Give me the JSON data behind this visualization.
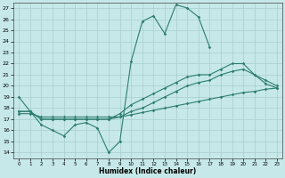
{
  "xlabel": "Humidex (Indice chaleur)",
  "ylabel": "",
  "bg_color": "#c6e8e8",
  "line_color": "#2d7d6e",
  "grid_color": "#a8cece",
  "xlim": [
    -0.5,
    23.5
  ],
  "ylim": [
    13.5,
    27.5
  ],
  "xticks": [
    0,
    1,
    2,
    3,
    4,
    5,
    6,
    7,
    8,
    9,
    10,
    11,
    12,
    13,
    14,
    15,
    16,
    17,
    18,
    19,
    20,
    21,
    22,
    23
  ],
  "yticks": [
    14,
    15,
    16,
    17,
    18,
    19,
    20,
    21,
    22,
    23,
    24,
    25,
    26,
    27
  ],
  "series": [
    {
      "x": [
        0,
        1,
        2,
        3,
        4,
        5,
        6,
        7,
        8,
        9,
        10,
        11,
        12,
        13,
        14,
        15,
        16,
        17
      ],
      "y": [
        19.0,
        17.7,
        16.5,
        16.0,
        15.5,
        16.5,
        16.7,
        16.2,
        14.0,
        15.0,
        22.2,
        25.8,
        26.3,
        24.7,
        27.3,
        27.0,
        26.2,
        23.5
      ]
    },
    {
      "x": [
        0,
        1,
        2,
        3,
        4,
        5,
        6,
        7,
        8,
        9,
        10,
        11,
        12,
        13,
        14,
        15,
        16,
        17,
        18,
        19,
        20,
        21,
        22,
        23
      ],
      "y": [
        17.7,
        17.7,
        17.0,
        17.0,
        17.0,
        17.0,
        17.0,
        17.0,
        17.0,
        17.5,
        18.3,
        18.8,
        19.3,
        19.8,
        20.3,
        20.8,
        21.0,
        21.0,
        21.5,
        22.0,
        22.0,
        21.0,
        20.5,
        20.0
      ]
    },
    {
      "x": [
        0,
        1,
        2,
        3,
        4,
        5,
        6,
        7,
        8,
        9,
        10,
        11,
        12,
        13,
        14,
        15,
        16,
        17,
        18,
        19,
        20,
        21,
        22,
        23
      ],
      "y": [
        17.7,
        17.7,
        17.0,
        17.0,
        17.0,
        17.0,
        17.0,
        17.0,
        17.0,
        17.2,
        17.7,
        18.0,
        18.5,
        19.0,
        19.5,
        20.0,
        20.3,
        20.5,
        21.0,
        21.3,
        21.5,
        21.0,
        20.2,
        19.8
      ]
    },
    {
      "x": [
        0,
        1,
        2,
        3,
        4,
        5,
        6,
        7,
        8,
        9,
        10,
        11,
        12,
        13,
        14,
        15,
        16,
        17,
        18,
        19,
        20,
        21,
        22,
        23
      ],
      "y": [
        17.5,
        17.5,
        17.2,
        17.2,
        17.2,
        17.2,
        17.2,
        17.2,
        17.2,
        17.2,
        17.4,
        17.6,
        17.8,
        18.0,
        18.2,
        18.4,
        18.6,
        18.8,
        19.0,
        19.2,
        19.4,
        19.5,
        19.7,
        19.8
      ]
    }
  ]
}
